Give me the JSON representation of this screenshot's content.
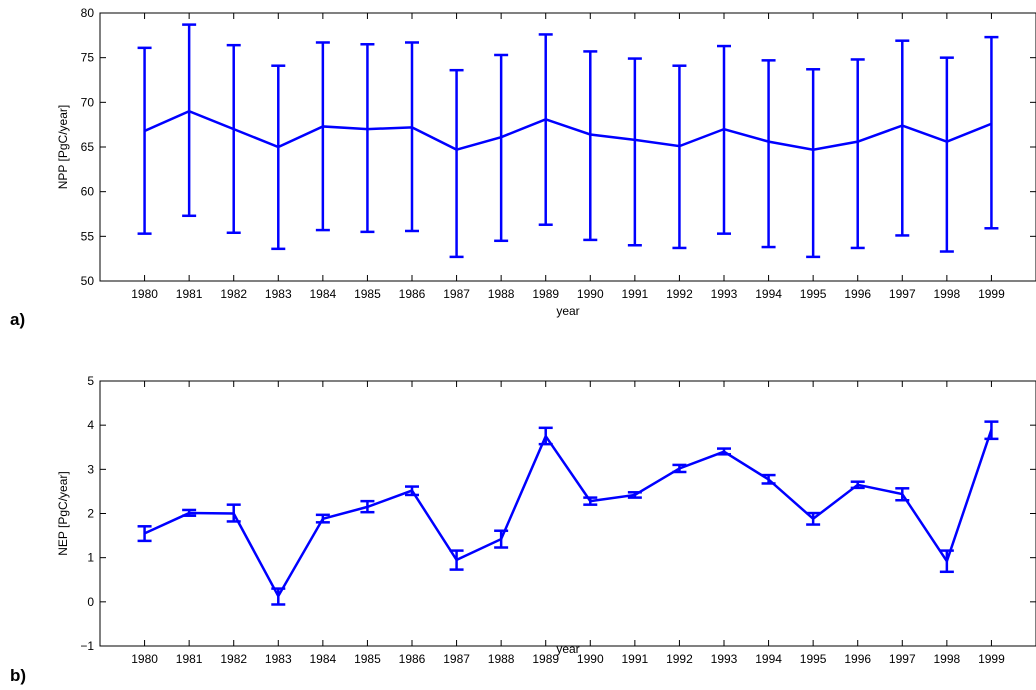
{
  "figure": {
    "panel_labels": [
      "a)",
      "b)"
    ]
  },
  "chart_data": [
    {
      "type": "line",
      "panel_label": "a)",
      "xlabel": "year",
      "ylabel": "NPP [PgC/year]",
      "x": [
        1980,
        1981,
        1982,
        1983,
        1984,
        1985,
        1986,
        1987,
        1988,
        1989,
        1990,
        1991,
        1992,
        1993,
        1994,
        1995,
        1996,
        1997,
        1998,
        1999
      ],
      "xlim": [
        1979,
        2000
      ],
      "ylim": [
        50,
        80
      ],
      "yticks": [
        50,
        55,
        60,
        65,
        70,
        75,
        80
      ],
      "grid": false,
      "color": "#0000ff",
      "series": [
        {
          "values": [
            66.8,
            69.0,
            67.0,
            65.0,
            67.3,
            67.0,
            67.2,
            64.7,
            66.1,
            68.1,
            66.4,
            65.8,
            65.1,
            67.0,
            65.6,
            64.7,
            65.6,
            67.4,
            65.6,
            67.6
          ],
          "error_low": [
            55.3,
            57.3,
            55.4,
            53.6,
            55.7,
            55.5,
            55.6,
            52.7,
            54.5,
            56.3,
            54.6,
            54.0,
            53.7,
            55.3,
            53.8,
            52.7,
            53.7,
            55.1,
            53.3,
            55.9
          ],
          "error_high": [
            76.1,
            78.7,
            76.4,
            74.1,
            76.7,
            76.5,
            76.7,
            73.6,
            75.3,
            77.6,
            75.7,
            74.9,
            74.1,
            76.3,
            74.7,
            73.7,
            74.8,
            76.9,
            75.0,
            77.3
          ]
        }
      ]
    },
    {
      "type": "line",
      "panel_label": "b)",
      "xlabel": "year",
      "ylabel": "NEP [PgC/year]",
      "x": [
        1980,
        1981,
        1982,
        1983,
        1984,
        1985,
        1986,
        1987,
        1988,
        1989,
        1990,
        1991,
        1992,
        1993,
        1994,
        1995,
        1996,
        1997,
        1998,
        1999
      ],
      "xlim": [
        1979,
        2000
      ],
      "ylim": [
        -1,
        5
      ],
      "yticks": [
        -1,
        0,
        1,
        2,
        3,
        4,
        5
      ],
      "ytick_labels": [
        "−1",
        "0",
        "1",
        "2",
        "3",
        "4",
        "5"
      ],
      "grid": false,
      "color": "#0000ff",
      "series": [
        {
          "values": [
            1.55,
            2.01,
            2.0,
            0.13,
            1.88,
            2.15,
            2.52,
            0.95,
            1.42,
            3.75,
            2.28,
            2.42,
            3.02,
            3.4,
            2.77,
            1.88,
            2.65,
            2.44,
            0.92,
            3.9
          ],
          "error_low": [
            1.38,
            1.95,
            1.82,
            -0.06,
            1.8,
            2.03,
            2.42,
            0.73,
            1.23,
            3.57,
            2.2,
            2.36,
            2.94,
            3.34,
            2.68,
            1.75,
            2.58,
            2.3,
            0.68,
            3.69
          ],
          "error_high": [
            1.71,
            2.08,
            2.2,
            0.3,
            1.97,
            2.28,
            2.61,
            1.16,
            1.61,
            3.94,
            2.36,
            2.48,
            3.1,
            3.47,
            2.87,
            2.01,
            2.72,
            2.57,
            1.16,
            4.08
          ]
        }
      ]
    }
  ]
}
